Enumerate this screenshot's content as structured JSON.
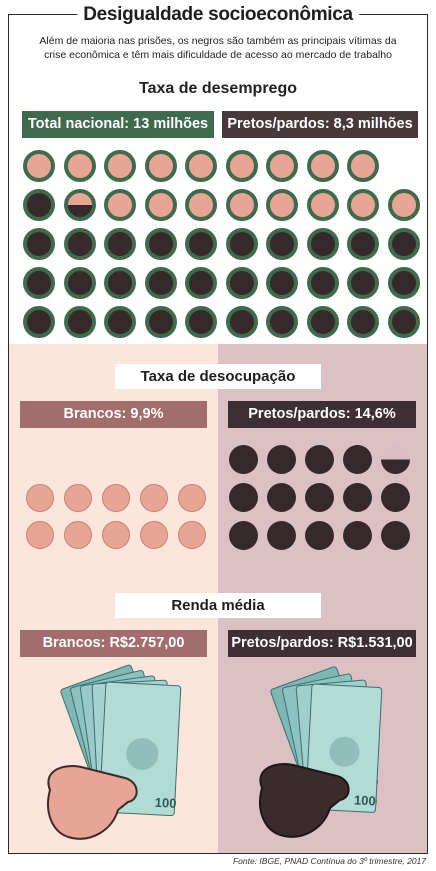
{
  "header": {
    "title": "Desigualdade socioeconômica",
    "subtitle_line1": "Além de maioria nas prisões, os negros são também as principais vítimas da",
    "subtitle_line2": "crise econômica e têm mais dificuldade de acesso ao mercado de trabalho"
  },
  "unemployment": {
    "title": "Taxa de desemprego",
    "total_label": "Total nacional: 13 milhões",
    "black_label": "Pretos/pardos: 8,3 milhões",
    "total_millions": 13,
    "black_millions": 8.3,
    "colors": {
      "ring": "#3f6a4c",
      "pink": "#e6a595",
      "dark": "#36292c",
      "label_green": "#3f6a4c",
      "label_brown": "#4a393c"
    }
  },
  "joblessness": {
    "title": "Taxa de desocupação",
    "white_label": "Brancos: 9,9%",
    "black_label": "Pretos/pardos: 14,6%",
    "white_percent": 9.9,
    "black_percent": 14.6,
    "colors": {
      "white_box": "#a36d6b",
      "black_box": "#3d2f33",
      "white_disc": "#e6a595",
      "black_disc": "#36292c"
    }
  },
  "income": {
    "title": "Renda média",
    "white_label": "Brancos: R$2.757,00",
    "black_label": "Pretos/pardos: R$1.531,00",
    "banknote_value": "100"
  },
  "source": "Fonte: IBGE, PNAD Contínua do 3º trimestre, 2017"
}
